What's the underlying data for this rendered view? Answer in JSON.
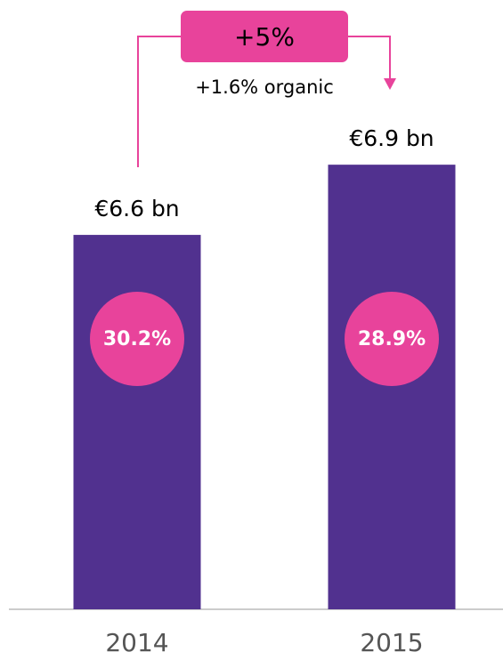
{
  "chart_data": {
    "type": "bar",
    "categories": [
      "2014",
      "2015"
    ],
    "values": [
      6.6,
      6.9
    ],
    "value_labels": [
      "€6.6 bn",
      "€6.9 bn"
    ],
    "color": "#51318f",
    "ylim": [
      5,
      7.6
    ],
    "margins": {
      "values": [
        30.2,
        28.9
      ],
      "value_labels": [
        "30.2%",
        "28.9%"
      ],
      "color": "#e8439b"
    },
    "annotations": {
      "change": "+5%",
      "organic": "+1.6% organic",
      "color": "#e8439b"
    }
  }
}
